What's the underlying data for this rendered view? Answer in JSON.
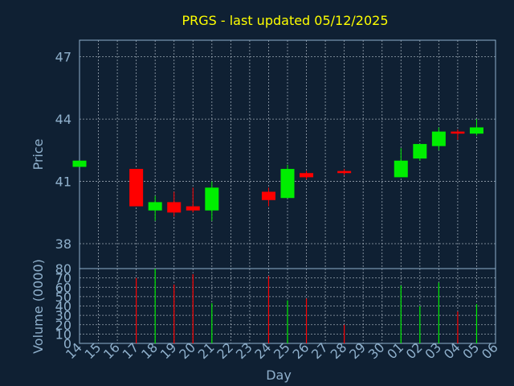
{
  "chart_data": {
    "type": "candlestick",
    "title": "PRGS - last updated 05/12/2025",
    "xlabel": "Day",
    "x": [
      "14",
      "15",
      "16",
      "17",
      "18",
      "19",
      "20",
      "21",
      "22",
      "23",
      "24",
      "25",
      "26",
      "27",
      "28",
      "29",
      "30",
      "01",
      "02",
      "03",
      "04",
      "05",
      "06"
    ],
    "price_panel": {
      "ylabel": "Price",
      "ylim": [
        36.8,
        47.8
      ],
      "yticks": [
        38,
        41,
        44,
        47
      ],
      "grid": true,
      "candles": [
        {
          "day": "14",
          "open": 41.7,
          "close": 42.0,
          "high": 42.0,
          "low": 41.7
        },
        {
          "day": "17",
          "open": 41.6,
          "close": 39.8,
          "high": 41.6,
          "low": 39.8
        },
        {
          "day": "18",
          "open": 39.6,
          "close": 40.0,
          "high": 40.3,
          "low": 39.1
        },
        {
          "day": "19",
          "open": 40.0,
          "close": 39.5,
          "high": 40.5,
          "low": 39.3
        },
        {
          "day": "20",
          "open": 39.8,
          "close": 39.6,
          "high": 40.7,
          "low": 39.5
        },
        {
          "day": "21",
          "open": 39.6,
          "close": 40.7,
          "high": 41.0,
          "low": 39.1
        },
        {
          "day": "24",
          "open": 40.5,
          "close": 40.1,
          "high": 40.7,
          "low": 39.8
        },
        {
          "day": "25",
          "open": 40.2,
          "close": 41.6,
          "high": 41.8,
          "low": 40.2
        },
        {
          "day": "26",
          "open": 41.4,
          "close": 41.2,
          "high": 41.5,
          "low": 41.1
        },
        {
          "day": "28",
          "open": 41.5,
          "close": 41.4,
          "high": 41.6,
          "low": 41.3
        },
        {
          "day": "01",
          "open": 41.2,
          "close": 42.0,
          "high": 42.6,
          "low": 41.2
        },
        {
          "day": "02",
          "open": 42.1,
          "close": 42.8,
          "high": 42.8,
          "low": 42.0
        },
        {
          "day": "03",
          "open": 42.7,
          "close": 43.4,
          "high": 43.6,
          "low": 42.5
        },
        {
          "day": "04",
          "open": 43.4,
          "close": 43.3,
          "high": 43.5,
          "low": 43.0
        },
        {
          "day": "05",
          "open": 43.3,
          "close": 43.6,
          "high": 44.0,
          "low": 43.2
        }
      ]
    },
    "volume_panel": {
      "ylabel": "Volume (0000)",
      "ylim": [
        0,
        80
      ],
      "yticks": [
        0,
        10,
        20,
        30,
        40,
        50,
        60,
        70,
        80
      ],
      "grid": true,
      "bars": [
        {
          "day": "17",
          "value": 70,
          "direction": "down"
        },
        {
          "day": "18",
          "value": 80,
          "direction": "up"
        },
        {
          "day": "19",
          "value": 63,
          "direction": "down"
        },
        {
          "day": "20",
          "value": 74,
          "direction": "down"
        },
        {
          "day": "21",
          "value": 43,
          "direction": "up"
        },
        {
          "day": "24",
          "value": 72,
          "direction": "down"
        },
        {
          "day": "25",
          "value": 46,
          "direction": "up"
        },
        {
          "day": "26",
          "value": 48,
          "direction": "down"
        },
        {
          "day": "28",
          "value": 20,
          "direction": "down"
        },
        {
          "day": "01",
          "value": 62,
          "direction": "up"
        },
        {
          "day": "02",
          "value": 40,
          "direction": "up"
        },
        {
          "day": "03",
          "value": 65,
          "direction": "up"
        },
        {
          "day": "04",
          "value": 34,
          "direction": "down"
        },
        {
          "day": "05",
          "value": 42,
          "direction": "up"
        }
      ]
    },
    "colors": {
      "background": "#0f2033",
      "up": "#00ee00",
      "down": "#ff0000",
      "title": "#ffff00",
      "axis_text": "#8fb0cc",
      "grid": "#c8d2dc",
      "frame": "#8fb0cc"
    }
  }
}
